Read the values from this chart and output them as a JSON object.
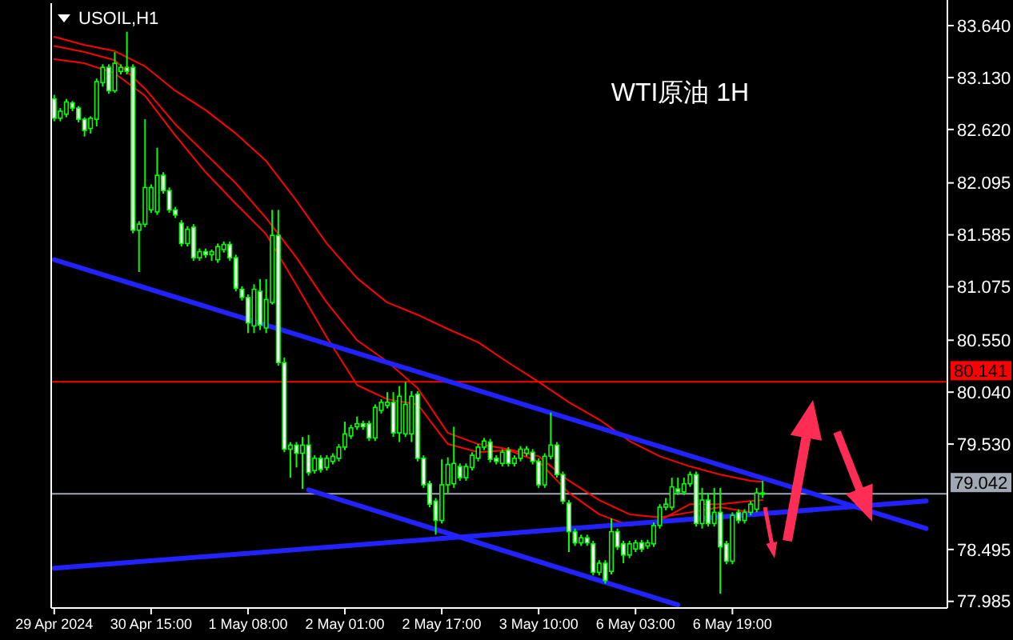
{
  "chart_data": {
    "type": "candlestick",
    "title": "WTI原油 1H",
    "subtitle": "USOIL,H1",
    "color": "#00ff00",
    "categories": [
      "29 Apr 2024",
      null,
      null,
      null,
      null,
      null,
      null,
      null,
      null,
      null,
      null,
      null,
      null,
      null,
      null,
      null,
      "30 Apr 15:00",
      null,
      null,
      null,
      null,
      null,
      null,
      null,
      null,
      null,
      null,
      null,
      null,
      null,
      null,
      null,
      "1 May 08:00",
      null,
      null,
      null,
      null,
      null,
      null,
      null,
      null,
      null,
      null,
      null,
      null,
      null,
      null,
      null,
      "2 May 01:00",
      null,
      null,
      null,
      null,
      null,
      null,
      null,
      null,
      null,
      null,
      null,
      null,
      null,
      null,
      null,
      "2 May 17:00",
      null,
      null,
      null,
      null,
      null,
      null,
      null,
      null,
      null,
      null,
      null,
      null,
      null,
      null,
      null,
      "3 May 10:00",
      null,
      null,
      null,
      null,
      null,
      null,
      null,
      null,
      null,
      null,
      null,
      null,
      null,
      null,
      null,
      "6 May 03:00",
      null,
      null,
      null,
      null,
      null,
      null,
      null,
      null,
      null,
      null,
      null,
      null,
      null,
      null,
      null,
      "6 May 19:00",
      null,
      null,
      null,
      null,
      null,
      null,
      null,
      null,
      null,
      null,
      null,
      null,
      null,
      null,
      null,
      null,
      null,
      null,
      null,
      null,
      null,
      null,
      null,
      null,
      null,
      null,
      null,
      null,
      null,
      null,
      null,
      null,
      null,
      null,
      null
    ],
    "ohlc": [
      [
        82.92,
        82.96,
        82.7,
        82.73
      ],
      [
        82.73,
        82.83,
        82.7,
        82.8
      ],
      [
        82.77,
        82.92,
        82.74,
        82.89
      ],
      [
        82.88,
        82.9,
        82.8,
        82.83
      ],
      [
        82.83,
        82.85,
        82.69,
        82.72
      ],
      [
        82.72,
        82.74,
        82.55,
        82.61
      ],
      [
        82.63,
        82.75,
        82.58,
        82.73
      ],
      [
        82.72,
        83.12,
        82.65,
        83.09
      ],
      [
        83.08,
        83.26,
        83.04,
        83.23
      ],
      [
        83.23,
        83.26,
        82.97,
        83.0
      ],
      [
        83.0,
        83.38,
        82.98,
        83.27
      ],
      [
        83.19,
        83.26,
        83.16,
        83.23
      ],
      [
        83.23,
        83.58,
        83.16,
        83.19
      ],
      [
        83.23,
        83.26,
        81.6,
        81.63
      ],
      [
        81.63,
        81.72,
        81.22,
        81.69
      ],
      [
        81.69,
        82.72,
        81.66,
        82.05
      ],
      [
        81.83,
        82.08,
        81.8,
        82.05
      ],
      [
        81.81,
        82.44,
        81.78,
        82.17
      ],
      [
        82.17,
        82.2,
        81.99,
        82.02
      ],
      [
        82.02,
        82.05,
        81.8,
        81.83
      ],
      [
        81.83,
        81.86,
        81.75,
        81.78
      ],
      [
        81.7,
        81.73,
        81.47,
        81.5
      ],
      [
        81.5,
        81.67,
        81.47,
        81.64
      ],
      [
        81.66,
        81.69,
        81.33,
        81.36
      ],
      [
        81.36,
        81.45,
        81.33,
        81.42
      ],
      [
        81.42,
        81.45,
        81.36,
        81.39
      ],
      [
        81.39,
        81.44,
        81.33,
        81.42
      ],
      [
        81.34,
        81.5,
        81.31,
        81.47
      ],
      [
        81.44,
        81.52,
        81.41,
        81.49
      ],
      [
        81.49,
        81.52,
        81.33,
        81.36
      ],
      [
        81.36,
        81.39,
        81.03,
        81.06
      ],
      [
        81.05,
        81.08,
        80.94,
        80.97
      ],
      [
        80.97,
        81.0,
        80.62,
        80.72
      ],
      [
        80.69,
        81.1,
        80.62,
        81.05
      ],
      [
        81.03,
        81.15,
        80.65,
        80.7
      ],
      [
        80.67,
        81.15,
        80.62,
        80.95
      ],
      [
        80.92,
        81.83,
        80.9,
        81.58
      ],
      [
        81.58,
        81.83,
        80.3,
        80.33
      ],
      [
        80.33,
        80.38,
        79.45,
        79.48
      ],
      [
        79.48,
        79.55,
        79.2,
        79.52
      ],
      [
        79.52,
        79.55,
        79.3,
        79.44
      ],
      [
        79.44,
        79.6,
        79.09,
        79.52
      ],
      [
        79.52,
        79.62,
        79.22,
        79.25
      ],
      [
        79.27,
        79.42,
        79.24,
        79.39
      ],
      [
        79.39,
        79.42,
        79.25,
        79.28
      ],
      [
        79.3,
        79.42,
        79.27,
        79.39
      ],
      [
        79.36,
        79.44,
        79.33,
        79.41
      ],
      [
        79.39,
        79.53,
        79.36,
        79.5
      ],
      [
        79.5,
        79.75,
        79.47,
        79.63
      ],
      [
        79.61,
        79.72,
        79.58,
        79.69
      ],
      [
        79.7,
        79.8,
        79.67,
        79.73
      ],
      [
        79.73,
        79.76,
        79.67,
        79.7
      ],
      [
        79.73,
        79.76,
        79.56,
        79.59
      ],
      [
        79.59,
        79.92,
        79.56,
        79.89
      ],
      [
        79.86,
        79.97,
        79.83,
        79.94
      ],
      [
        79.91,
        80.04,
        79.88,
        79.94
      ],
      [
        79.94,
        80.04,
        79.6,
        79.64
      ],
      [
        79.64,
        80.1,
        79.55,
        80.0
      ],
      [
        79.63,
        80.14,
        79.6,
        79.92
      ],
      [
        79.63,
        80.05,
        79.55,
        80.0
      ],
      [
        80.02,
        80.05,
        79.36,
        79.39
      ],
      [
        79.39,
        79.42,
        79.1,
        79.13
      ],
      [
        79.14,
        79.17,
        78.91,
        78.94
      ],
      [
        78.97,
        79.0,
        78.64,
        78.78
      ],
      [
        78.78,
        79.38,
        78.75,
        79.13
      ],
      [
        79.13,
        79.4,
        79.05,
        79.33
      ],
      [
        79.14,
        79.7,
        79.1,
        79.34
      ],
      [
        79.31,
        79.34,
        79.17,
        79.2
      ],
      [
        79.2,
        79.34,
        79.17,
        79.31
      ],
      [
        79.3,
        79.45,
        79.27,
        79.42
      ],
      [
        79.39,
        79.53,
        79.36,
        79.5
      ],
      [
        79.5,
        79.59,
        79.47,
        79.56
      ],
      [
        79.55,
        79.58,
        79.35,
        79.38
      ],
      [
        79.39,
        79.42,
        79.33,
        79.36
      ],
      [
        79.34,
        79.48,
        79.31,
        79.45
      ],
      [
        79.47,
        79.5,
        79.31,
        79.34
      ],
      [
        79.34,
        79.42,
        79.31,
        79.39
      ],
      [
        79.39,
        79.51,
        79.36,
        79.48
      ],
      [
        79.44,
        79.51,
        79.41,
        79.48
      ],
      [
        79.45,
        79.48,
        79.33,
        79.36
      ],
      [
        79.36,
        79.39,
        79.1,
        79.13
      ],
      [
        79.13,
        79.44,
        79.1,
        79.41
      ],
      [
        79.41,
        79.84,
        79.38,
        79.52
      ],
      [
        79.52,
        79.55,
        79.2,
        79.23
      ],
      [
        79.23,
        79.26,
        78.94,
        78.97
      ],
      [
        78.95,
        78.98,
        78.47,
        78.67
      ],
      [
        78.67,
        78.7,
        78.53,
        78.56
      ],
      [
        78.56,
        78.64,
        78.53,
        78.61
      ],
      [
        78.61,
        78.64,
        78.53,
        78.56
      ],
      [
        78.55,
        78.58,
        78.24,
        78.27
      ],
      [
        78.27,
        78.39,
        78.24,
        78.36
      ],
      [
        78.36,
        78.39,
        78.16,
        78.19
      ],
      [
        78.28,
        78.8,
        78.25,
        78.67
      ],
      [
        78.67,
        78.7,
        78.49,
        78.52
      ],
      [
        78.55,
        78.58,
        78.36,
        78.44
      ],
      [
        78.44,
        78.58,
        78.41,
        78.55
      ],
      [
        78.5,
        78.59,
        78.47,
        78.56
      ],
      [
        78.56,
        78.59,
        78.47,
        78.5
      ],
      [
        78.53,
        78.59,
        78.5,
        78.56
      ],
      [
        78.55,
        78.76,
        78.52,
        78.73
      ],
      [
        78.73,
        78.94,
        78.7,
        78.91
      ],
      [
        78.91,
        79.0,
        78.88,
        78.94
      ],
      [
        78.91,
        79.2,
        78.88,
        79.11
      ],
      [
        79.09,
        79.2,
        79.03,
        79.06
      ],
      [
        79.06,
        79.2,
        79.03,
        79.14
      ],
      [
        79.14,
        79.26,
        79.11,
        79.23
      ],
      [
        79.23,
        79.26,
        78.72,
        78.75
      ],
      [
        78.75,
        79.1,
        78.7,
        78.98
      ],
      [
        78.98,
        79.05,
        78.72,
        78.75
      ],
      [
        78.75,
        79.1,
        78.72,
        78.86
      ],
      [
        78.86,
        79.1,
        78.06,
        78.52
      ],
      [
        78.55,
        78.58,
        78.35,
        78.38
      ],
      [
        78.38,
        78.86,
        78.35,
        78.83
      ],
      [
        78.86,
        78.89,
        78.75,
        78.78
      ],
      [
        78.78,
        78.89,
        78.75,
        78.86
      ],
      [
        78.86,
        78.97,
        78.83,
        78.94
      ],
      [
        78.89,
        79.1,
        78.86,
        79.05
      ],
      [
        79.05,
        79.17,
        79.0,
        79.04
      ],
      null,
      null,
      null,
      null,
      null,
      null,
      null,
      null,
      null,
      null,
      null,
      null,
      null,
      null,
      null,
      null,
      null,
      null,
      null,
      null,
      null,
      null,
      null,
      null,
      null,
      null,
      null,
      null,
      null,
      null
    ],
    "series": [
      {
        "type": "line",
        "color": "#ff0000",
        "values": [
          83.53,
          null,
          null,
          null,
          null,
          83.45,
          null,
          null,
          null,
          null,
          83.39,
          null,
          null,
          null,
          null,
          83.24,
          null,
          null,
          null,
          null,
          83.0,
          null,
          null,
          null,
          null,
          82.81,
          null,
          null,
          null,
          null,
          82.58,
          null,
          null,
          null,
          null,
          82.31,
          null,
          null,
          null,
          null,
          81.92,
          null,
          null,
          null,
          null,
          81.5,
          null,
          null,
          null,
          null,
          81.16,
          null,
          null,
          null,
          null,
          80.92,
          null,
          null,
          null,
          null,
          80.8,
          null,
          null,
          null,
          null,
          80.66,
          null,
          null,
          null,
          null,
          80.53,
          null,
          null,
          null,
          null,
          80.33,
          null,
          null,
          null,
          null,
          80.14,
          null,
          null,
          null,
          null,
          79.94,
          null,
          null,
          null,
          null,
          79.77,
          null,
          null,
          null,
          null,
          79.56,
          null,
          null,
          null,
          null,
          79.41,
          null,
          null,
          null,
          null,
          79.31,
          null,
          null,
          null,
          null,
          79.23,
          null,
          null,
          null,
          null,
          79.17,
          null,
          79.16,
          null,
          null,
          null,
          null,
          null,
          null,
          null,
          null,
          null,
          null,
          null,
          null,
          null,
          null,
          null,
          null,
          null,
          null,
          null,
          null,
          null,
          null,
          null,
          null,
          null,
          null,
          null,
          null,
          null,
          null
        ]
      },
      {
        "type": "line",
        "color": "#ff0000",
        "values": [
          83.44,
          null,
          null,
          null,
          null,
          83.38,
          null,
          null,
          null,
          null,
          83.3,
          null,
          null,
          null,
          null,
          83.02,
          null,
          null,
          null,
          null,
          82.67,
          null,
          null,
          null,
          null,
          82.38,
          null,
          null,
          null,
          null,
          82.09,
          null,
          null,
          null,
          null,
          81.75,
          null,
          null,
          null,
          null,
          81.36,
          null,
          null,
          null,
          null,
          80.92,
          null,
          null,
          null,
          null,
          80.55,
          null,
          null,
          null,
          null,
          80.34,
          null,
          null,
          null,
          null,
          80.08,
          null,
          null,
          null,
          null,
          79.64,
          null,
          null,
          null,
          null,
          79.53,
          null,
          null,
          null,
          null,
          79.48,
          null,
          null,
          null,
          null,
          79.41,
          null,
          null,
          null,
          null,
          79.17,
          null,
          null,
          null,
          null,
          78.98,
          null,
          null,
          null,
          null,
          78.84,
          null,
          null,
          null,
          null,
          78.81,
          null,
          null,
          null,
          null,
          78.86,
          null,
          null,
          null,
          null,
          78.91,
          null,
          null,
          null,
          null,
          78.86,
          null,
          78.84,
          null,
          null,
          null,
          null,
          null,
          null,
          null,
          null,
          null,
          null,
          null,
          null,
          null,
          null,
          null,
          null,
          null,
          null,
          null,
          null,
          null,
          null,
          null,
          null,
          null,
          null,
          null,
          null,
          null,
          null
        ]
      },
      {
        "type": "line",
        "color": "#ff0000",
        "values": [
          83.31,
          null,
          null,
          null,
          null,
          83.27,
          null,
          null,
          null,
          null,
          83.17,
          null,
          null,
          null,
          null,
          82.95,
          null,
          null,
          null,
          null,
          82.56,
          null,
          null,
          null,
          null,
          82.2,
          null,
          null,
          null,
          null,
          81.89,
          null,
          null,
          null,
          null,
          81.59,
          null,
          null,
          null,
          null,
          81.09,
          null,
          null,
          null,
          null,
          80.58,
          null,
          null,
          null,
          null,
          80.11,
          null,
          null,
          null,
          null,
          79.97,
          null,
          null,
          null,
          null,
          79.92,
          null,
          null,
          null,
          null,
          79.53,
          null,
          null,
          null,
          null,
          79.45,
          null,
          null,
          null,
          null,
          79.47,
          null,
          null,
          null,
          null,
          79.36,
          null,
          null,
          null,
          null,
          79.05,
          null,
          null,
          null,
          null,
          78.84,
          null,
          null,
          null,
          null,
          78.73,
          null,
          null,
          null,
          null,
          78.78,
          null,
          null,
          null,
          null,
          78.94,
          null,
          null,
          null,
          null,
          78.94,
          null,
          null,
          null,
          null,
          78.97,
          null,
          78.98,
          null,
          null,
          null,
          null,
          null,
          null,
          null,
          null,
          null,
          null,
          null,
          null,
          null,
          null,
          null,
          null,
          null,
          null,
          null,
          null,
          null,
          null,
          null,
          null,
          null,
          null,
          null,
          null,
          null,
          null
        ]
      },
      {
        "type": "line",
        "color": "#2222ff",
        "values": [
          81.34,
          null,
          null,
          null,
          null,
          null,
          null,
          null,
          null,
          null,
          null,
          null,
          null,
          null,
          null,
          null,
          null,
          null,
          null,
          null,
          null,
          null,
          null,
          null,
          null,
          null,
          null,
          null,
          null,
          null,
          null,
          null,
          null,
          null,
          null,
          null,
          null,
          null,
          null,
          null,
          null,
          null,
          null,
          null,
          null,
          null,
          null,
          null,
          null,
          null,
          null,
          null,
          null,
          null,
          null,
          null,
          null,
          null,
          null,
          null,
          null,
          null,
          null,
          null,
          null,
          null,
          null,
          null,
          null,
          null,
          null,
          null,
          null,
          null,
          null,
          null,
          null,
          null,
          null,
          null,
          null,
          null,
          null,
          null,
          null,
          null,
          null,
          null,
          null,
          null,
          null,
          null,
          null,
          null,
          null,
          null,
          null,
          null,
          null,
          null,
          null,
          null,
          null,
          null,
          null,
          null,
          null,
          null,
          null,
          null,
          null,
          null,
          null,
          null,
          null,
          null,
          null,
          null,
          null,
          null,
          null,
          null,
          null,
          null,
          null,
          null,
          null,
          null,
          null,
          null,
          null,
          null,
          null,
          null,
          null,
          null,
          null,
          null,
          null,
          null,
          null,
          null,
          null,
          null,
          78.7,
          null,
          null,
          null
        ]
      },
      {
        "type": "line",
        "color": "#2222ff",
        "values": [
          null,
          null,
          null,
          null,
          null,
          null,
          null,
          null,
          null,
          null,
          null,
          null,
          null,
          null,
          null,
          null,
          null,
          null,
          null,
          null,
          null,
          null,
          null,
          null,
          null,
          null,
          null,
          null,
          null,
          null,
          null,
          null,
          null,
          null,
          null,
          null,
          null,
          null,
          null,
          null,
          null,
          null,
          79.08,
          null,
          null,
          null,
          null,
          null,
          null,
          null,
          null,
          null,
          null,
          null,
          null,
          null,
          null,
          null,
          null,
          null,
          null,
          null,
          null,
          null,
          null,
          null,
          null,
          null,
          null,
          null,
          null,
          null,
          null,
          null,
          null,
          null,
          null,
          null,
          null,
          null,
          null,
          null,
          null,
          null,
          null,
          null,
          null,
          null,
          null,
          null,
          null,
          null,
          null,
          null,
          null,
          null,
          null,
          null,
          null,
          null,
          null,
          null,
          null,
          77.95,
          null,
          null,
          null,
          null,
          null,
          null,
          null,
          null,
          null,
          null,
          null,
          null,
          null,
          null,
          null,
          null,
          null,
          null,
          null,
          null,
          null,
          null,
          null,
          null,
          null,
          null,
          null,
          null,
          null,
          null,
          null,
          null,
          null,
          null,
          null,
          null,
          null,
          null,
          null,
          null,
          null,
          null,
          null,
          null
        ]
      },
      {
        "type": "line",
        "color": "#2222ff",
        "values": [
          78.31,
          null,
          null,
          null,
          null,
          null,
          null,
          null,
          null,
          null,
          null,
          null,
          null,
          null,
          null,
          null,
          null,
          null,
          null,
          null,
          null,
          null,
          null,
          null,
          null,
          null,
          null,
          null,
          null,
          null,
          null,
          null,
          null,
          null,
          null,
          null,
          null,
          null,
          null,
          null,
          null,
          null,
          null,
          null,
          null,
          null,
          null,
          null,
          null,
          null,
          null,
          null,
          null,
          null,
          null,
          null,
          null,
          null,
          null,
          null,
          null,
          null,
          null,
          null,
          null,
          null,
          null,
          null,
          null,
          null,
          null,
          null,
          null,
          null,
          null,
          null,
          null,
          null,
          null,
          null,
          null,
          null,
          null,
          null,
          null,
          null,
          null,
          null,
          null,
          null,
          null,
          null,
          null,
          null,
          null,
          null,
          null,
          null,
          null,
          null,
          null,
          null,
          null,
          null,
          null,
          null,
          null,
          null,
          null,
          null,
          null,
          null,
          null,
          null,
          null,
          null,
          null,
          null,
          null,
          null,
          null,
          null,
          null,
          null,
          null,
          null,
          null,
          null,
          null,
          null,
          null,
          null,
          null,
          null,
          null,
          null,
          null,
          null,
          null,
          null,
          null,
          null,
          null,
          null,
          78.97,
          null,
          null,
          null
        ]
      }
    ],
    "ylim": [
      77.92,
      83.86
    ],
    "yticks": [
      77.985,
      78.495,
      {
        "value": 79.53,
        "label": "79.530"
      },
      {
        "value": 80.04,
        "label": "80.040"
      },
      {
        "value": 80.55,
        "label": "80.550"
      },
      81.075,
      81.585,
      82.095,
      {
        "value": 82.62,
        "label": "82.620"
      },
      {
        "value": 83.13,
        "label": "83.130"
      },
      {
        "value": 83.64,
        "label": "83.640"
      }
    ],
    "ref_lines": [
      {
        "axis": "y",
        "value": 80.141,
        "label": "80.141",
        "color": "#ff0000"
      },
      {
        "axis": "y",
        "value": 79.042,
        "label": "79.042",
        "color": "#a0a8b4"
      }
    ]
  }
}
